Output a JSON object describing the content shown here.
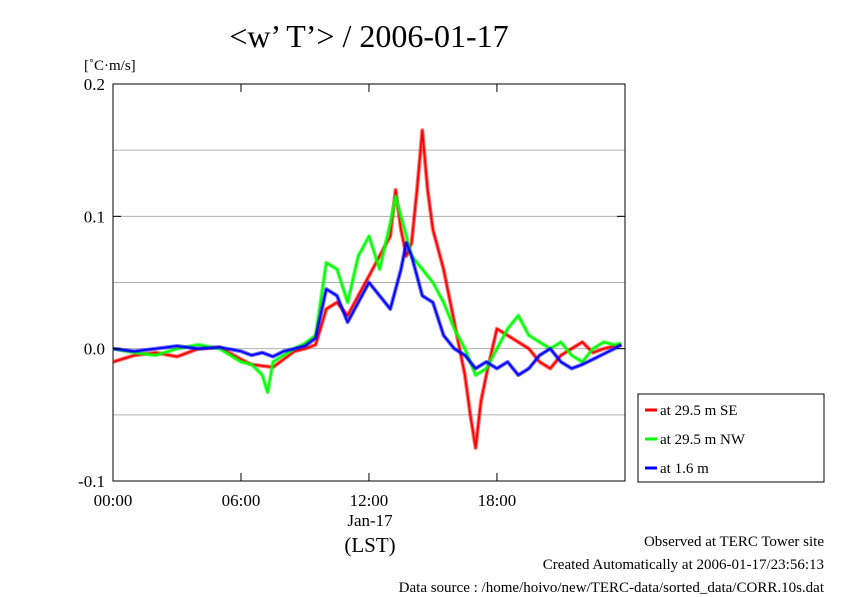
{
  "chart_data": {
    "type": "line",
    "title": "<w’ T’> / 2006-01-17",
    "unit_label": "[˚C·m/s]",
    "x_ticks": [
      "00:00",
      "06:00",
      "12:00",
      "18:00"
    ],
    "x_date_label": "Jan-17",
    "x_label": "(LST)",
    "ylim": [
      -0.1,
      0.2
    ],
    "y_ticks": [
      "-0.1",
      "0.0",
      "0.1",
      "0.2"
    ],
    "grid": true,
    "legend_position": "right-bottom",
    "series": [
      {
        "name": "at 29.5 m SE",
        "color": "#ff0000",
        "x": [
          "00:00",
          "01:00",
          "02:00",
          "03:00",
          "04:00",
          "05:00",
          "06:00",
          "06:30",
          "07:00",
          "07:30",
          "08:00",
          "08:30",
          "09:00",
          "09:30",
          "10:00",
          "10:30",
          "11:00",
          "11:30",
          "12:00",
          "12:30",
          "13:00",
          "13:15",
          "13:30",
          "13:45",
          "14:00",
          "14:15",
          "14:30",
          "14:45",
          "15:00",
          "15:30",
          "16:00",
          "16:30",
          "16:45",
          "17:00",
          "17:15",
          "17:30",
          "18:00",
          "18:30",
          "19:00",
          "19:30",
          "20:00",
          "20:30",
          "21:00",
          "21:30",
          "22:00",
          "22:30",
          "23:00",
          "23:30",
          "23:50"
        ],
        "y": [
          -0.01,
          -0.005,
          -0.003,
          -0.006,
          0.0,
          0.001,
          -0.008,
          -0.012,
          -0.013,
          -0.014,
          -0.008,
          -0.002,
          0.0,
          0.003,
          0.03,
          0.035,
          0.025,
          0.04,
          0.055,
          0.07,
          0.085,
          0.12,
          0.09,
          0.07,
          0.08,
          0.12,
          0.165,
          0.12,
          0.09,
          0.06,
          0.02,
          -0.02,
          -0.05,
          -0.075,
          -0.04,
          -0.02,
          0.015,
          0.01,
          0.005,
          0.0,
          -0.01,
          -0.015,
          -0.005,
          0.0,
          0.005,
          -0.003,
          0.0,
          0.002,
          0.003
        ]
      },
      {
        "name": "at 29.5 m NW",
        "color": "#00ff00",
        "x": [
          "00:00",
          "01:00",
          "02:00",
          "03:00",
          "04:00",
          "05:00",
          "06:00",
          "06:30",
          "07:00",
          "07:15",
          "07:30",
          "08:00",
          "08:30",
          "09:00",
          "09:30",
          "10:00",
          "10:30",
          "11:00",
          "11:30",
          "12:00",
          "12:30",
          "13:00",
          "13:15",
          "13:30",
          "13:45",
          "14:00",
          "14:30",
          "15:00",
          "15:30",
          "16:00",
          "16:30",
          "17:00",
          "17:30",
          "18:00",
          "18:30",
          "19:00",
          "19:30",
          "20:00",
          "20:30",
          "21:00",
          "21:30",
          "22:00",
          "22:30",
          "23:00",
          "23:30",
          "23:50"
        ],
        "y": [
          0.0,
          -0.003,
          -0.005,
          0.0,
          0.003,
          0.0,
          -0.01,
          -0.012,
          -0.02,
          -0.033,
          -0.01,
          -0.005,
          0.0,
          0.004,
          0.01,
          0.065,
          0.06,
          0.035,
          0.07,
          0.085,
          0.06,
          0.095,
          0.115,
          0.1,
          0.085,
          0.07,
          0.06,
          0.05,
          0.035,
          0.015,
          0.0,
          -0.02,
          -0.015,
          0.0,
          0.015,
          0.025,
          0.01,
          0.005,
          0.0,
          0.005,
          -0.005,
          -0.01,
          0.0,
          0.005,
          0.003,
          0.004
        ]
      },
      {
        "name": "at 1.6 m",
        "color": "#0000ff",
        "x": [
          "00:00",
          "01:00",
          "02:00",
          "03:00",
          "04:00",
          "05:00",
          "06:00",
          "06:30",
          "07:00",
          "07:30",
          "08:00",
          "08:30",
          "09:00",
          "09:30",
          "10:00",
          "10:30",
          "11:00",
          "11:30",
          "12:00",
          "12:30",
          "13:00",
          "13:30",
          "13:45",
          "14:00",
          "14:30",
          "15:00",
          "15:30",
          "16:00",
          "16:30",
          "17:00",
          "17:30",
          "18:00",
          "18:30",
          "19:00",
          "19:30",
          "20:00",
          "20:30",
          "21:00",
          "21:30",
          "22:00",
          "22:30",
          "23:00",
          "23:30",
          "23:50"
        ],
        "y": [
          0.0,
          -0.002,
          0.0,
          0.002,
          0.0,
          0.001,
          -0.002,
          -0.005,
          -0.003,
          -0.006,
          -0.002,
          0.0,
          0.002,
          0.008,
          0.045,
          0.04,
          0.02,
          0.035,
          0.05,
          0.04,
          0.03,
          0.06,
          0.08,
          0.07,
          0.04,
          0.035,
          0.01,
          0.0,
          -0.005,
          -0.015,
          -0.01,
          -0.015,
          -0.01,
          -0.02,
          -0.015,
          -0.005,
          0.0,
          -0.01,
          -0.015,
          -0.012,
          -0.008,
          -0.004,
          0.0,
          0.003
        ]
      }
    ]
  },
  "footer": {
    "line1": "Observed at TERC Tower site",
    "line2": "Created Automatically at 2006-01-17/23:56:13",
    "line3": "Data source : /home/hoivo/new/TERC-data/sorted_data/CORR.10s.dat"
  }
}
